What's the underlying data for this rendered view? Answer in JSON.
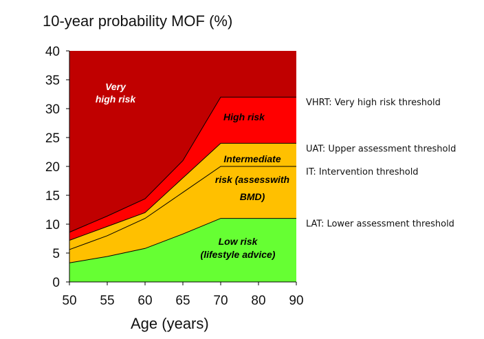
{
  "chart_data": {
    "type": "area",
    "title": "10-year probability MOF (%)",
    "xlabel": "Age (years)",
    "ylabel": "10-year probability MOF (%)",
    "xlim": [
      50,
      90
    ],
    "ylim": [
      0,
      40
    ],
    "x_ticks": [
      "50",
      "55",
      "60",
      "65",
      "70",
      "80",
      "90"
    ],
    "y_ticks": [
      "0",
      "5",
      "10",
      "15",
      "20",
      "25",
      "30",
      "35",
      "40"
    ],
    "x_tick_values": [
      50,
      55,
      60,
      65,
      70,
      80,
      90
    ],
    "grid": false,
    "x": [
      50,
      55,
      60,
      65,
      70,
      80,
      90
    ],
    "thresholds": [
      {
        "key": "LAT",
        "values": [
          3.3,
          4.4,
          5.8,
          8.3,
          11,
          11,
          11
        ],
        "label": "LAT: Lower assessment threshold",
        "color": "#000000"
      },
      {
        "key": "IT",
        "values": [
          5.6,
          8.0,
          11.0,
          15.5,
          20,
          20,
          20
        ],
        "label": "IT: Intervention threshold",
        "color": "#000000"
      },
      {
        "key": "UAT",
        "values": [
          7.2,
          9.6,
          12.0,
          18.0,
          24,
          24,
          24
        ],
        "label": "UAT: Upper assessment threshold",
        "color": "#000000"
      },
      {
        "key": "VHRT",
        "values": [
          8.6,
          11.4,
          14.4,
          21.0,
          32,
          32,
          32
        ],
        "label": "VHRT: Very high risk threshold",
        "color": "#000000"
      }
    ],
    "zones": [
      {
        "key": "low",
        "lines": [
          "Low risk",
          "(lifestyle advice)"
        ],
        "color": "#66ff33",
        "text_color": "#000000"
      },
      {
        "key": "intermediate_low",
        "lines": [
          "risk (assesswith",
          "BMD)"
        ],
        "color": "#ffc000",
        "text_color": "#000000"
      },
      {
        "key": "intermediate",
        "lines": [
          "Intermediate"
        ],
        "color": "#ffc000",
        "text_color": "#000000"
      },
      {
        "key": "high",
        "lines": [
          "High risk"
        ],
        "color": "#ff0000",
        "text_color": "#000000"
      },
      {
        "key": "very_high",
        "lines": [
          "Very",
          "high risk"
        ],
        "color": "#c00000",
        "text_color": "#ffffff"
      }
    ],
    "top_boundary": [
      40,
      40,
      40,
      40,
      40,
      40,
      40
    ]
  }
}
